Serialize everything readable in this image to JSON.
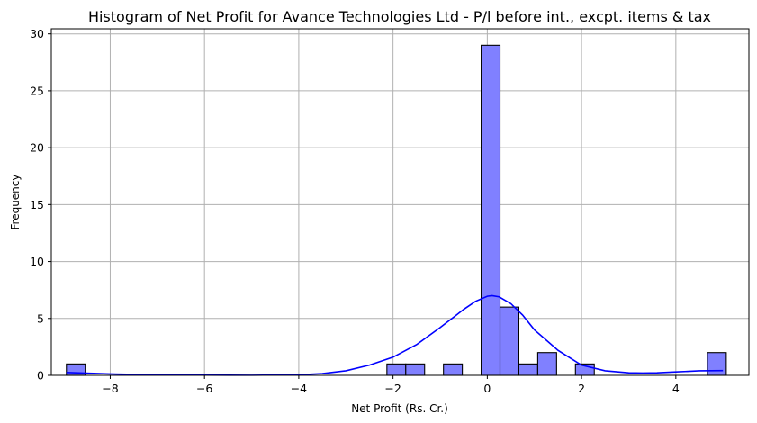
{
  "chart_data": {
    "type": "bar",
    "title": "Histogram of Net Profit for Avance Technologies Ltd - P/l before int., excpt. items & tax",
    "xlabel": "Net Profit (Rs. Cr.)",
    "ylabel": "Frequency",
    "xlim": [
      -9.25,
      5.55
    ],
    "ylim": [
      0,
      30.45
    ],
    "xticks": [
      -8,
      -6,
      -4,
      -2,
      0,
      2,
      4
    ],
    "xtick_labels": [
      "−8",
      "−6",
      "−4",
      "−2",
      "0",
      "2",
      "4"
    ],
    "yticks": [
      0,
      5,
      10,
      15,
      20,
      25,
      30
    ],
    "ytick_labels": [
      "0",
      "5",
      "10",
      "15",
      "20",
      "25",
      "30"
    ],
    "grid": true,
    "bar_color": "#8080ff",
    "kde_color": "#0000ff",
    "bins": [
      {
        "x0": -8.93,
        "x1": -8.53,
        "count": 1
      },
      {
        "x0": -2.13,
        "x1": -1.73,
        "count": 1
      },
      {
        "x0": -1.73,
        "x1": -1.33,
        "count": 1
      },
      {
        "x0": -0.93,
        "x1": -0.53,
        "count": 1
      },
      {
        "x0": -0.13,
        "x1": 0.27,
        "count": 29
      },
      {
        "x0": 0.27,
        "x1": 0.67,
        "count": 6
      },
      {
        "x0": 0.67,
        "x1": 1.07,
        "count": 1
      },
      {
        "x0": 1.07,
        "x1": 1.47,
        "count": 2
      },
      {
        "x0": 1.87,
        "x1": 2.27,
        "count": 1
      },
      {
        "x0": 4.67,
        "x1": 5.07,
        "count": 2
      }
    ],
    "kde": {
      "x": [
        -8.93,
        -8.0,
        -7.0,
        -6.0,
        -5.0,
        -4.0,
        -3.5,
        -3.0,
        -2.5,
        -2.0,
        -1.5,
        -1.0,
        -0.5,
        -0.25,
        0.0,
        0.1,
        0.25,
        0.5,
        0.75,
        1.0,
        1.5,
        2.0,
        2.5,
        3.0,
        3.3,
        3.6,
        4.0,
        4.5,
        5.0
      ],
      "y": [
        0.25,
        0.12,
        0.05,
        0.02,
        0.01,
        0.05,
        0.15,
        0.4,
        0.9,
        1.6,
        2.7,
        4.2,
        5.8,
        6.5,
        6.95,
        7.0,
        6.9,
        6.3,
        5.3,
        4.0,
        2.2,
        0.9,
        0.4,
        0.22,
        0.2,
        0.22,
        0.3,
        0.4,
        0.42
      ]
    }
  }
}
